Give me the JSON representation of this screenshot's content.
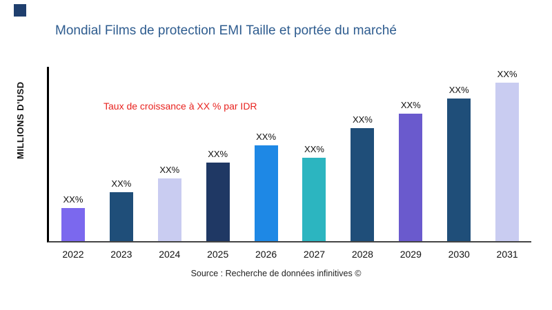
{
  "chart_data": {
    "type": "bar",
    "title": "Mondial Films de protection EMI Taille et portée du marché",
    "ylabel": "MILLIONS D'USD",
    "annotation": "Taux de croissance à XX % par IDR",
    "source": "Source : Recherche de données infinitives ©",
    "categories": [
      "2022",
      "2023",
      "2024",
      "2025",
      "2026",
      "2027",
      "2028",
      "2029",
      "2030",
      "2031"
    ],
    "values": [
      19,
      28,
      36,
      45,
      55,
      48,
      65,
      73,
      82,
      91
    ],
    "bar_labels": [
      "XX%",
      "XX%",
      "XX%",
      "XX%",
      "XX%",
      "XX%",
      "XX%",
      "XX%",
      "XX%",
      "XX%"
    ],
    "bar_colors": [
      "#7B68EE",
      "#1F4E79",
      "#C9CCF1",
      "#1F3864",
      "#1E88E5",
      "#2CB5C0",
      "#1F4E79",
      "#6A5ACD",
      "#1F4E79",
      "#C9CCF1"
    ],
    "ylim": [
      0,
      100
    ],
    "grid": false,
    "legend": "none",
    "colors": {
      "title": "#2E5C8F",
      "annotation": "#E8231F",
      "corner_square": "#1F3F6E",
      "axis": "#000000"
    }
  }
}
